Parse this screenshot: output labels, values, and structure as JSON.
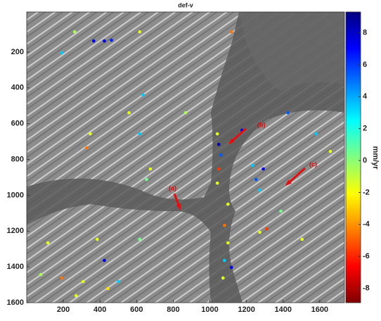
{
  "chart_data": {
    "type": "scatter",
    "title": "def-v",
    "colorbar_label": "mm/yr",
    "colormap": "jet",
    "clim": [
      -8.9,
      9.3
    ],
    "cticks": [
      -8,
      -6,
      -4,
      -2,
      0,
      2,
      4,
      6,
      8
    ],
    "xlim": [
      0,
      1735
    ],
    "ylim": [
      1600,
      -24
    ],
    "xticks": [
      200,
      400,
      600,
      800,
      1000,
      1200,
      1400,
      1600
    ],
    "yticks": [
      200,
      400,
      600,
      800,
      1000,
      1200,
      1400,
      1600
    ],
    "annotations": [
      "(a)",
      "(b)",
      "(c)"
    ],
    "x": [
      366,
      424,
      463,
      262,
      193,
      617,
      1118,
      636,
      559,
      347,
      328,
      617,
      868,
      675,
      655,
      1041,
      1049,
      1061,
      1049,
      1041,
      1176,
      1234,
      1253,
      1273,
      1292,
      1311,
      1273,
      1388,
      1099,
      1080,
      1099,
      1080,
      1118,
      1072,
      116,
      193,
      77,
      308,
      424,
      385,
      617,
      501,
      270,
      443,
      1581,
      1427,
      1504,
      1658
    ],
    "y": [
      138,
      138,
      134,
      87,
      204,
      87,
      87,
      440,
      539,
      657,
      735,
      657,
      539,
      853,
      912,
      657,
      716,
      775,
      853,
      932,
      637,
      834,
      912,
      971,
      853,
      1188,
      1207,
      1089,
      1050,
      1168,
      1266,
      1364,
      1403,
      1462,
      1266,
      1462,
      1443,
      1482,
      1364,
      1246,
      1246,
      1482,
      1561,
      1521,
      657,
      539,
      1246,
      755
    ],
    "values": [
      -7,
      -7,
      -6,
      1,
      -3,
      2,
      5,
      -3,
      2,
      2,
      5,
      -3,
      1,
      2,
      0,
      2,
      -8,
      -5,
      6,
      2,
      -7,
      -3,
      -5,
      -3,
      -7,
      6,
      2,
      0,
      2,
      5,
      2,
      -3,
      -7,
      2,
      2,
      5,
      1,
      2,
      -7,
      2,
      0,
      -3,
      2,
      3,
      -3,
      -5,
      2,
      2
    ]
  }
}
